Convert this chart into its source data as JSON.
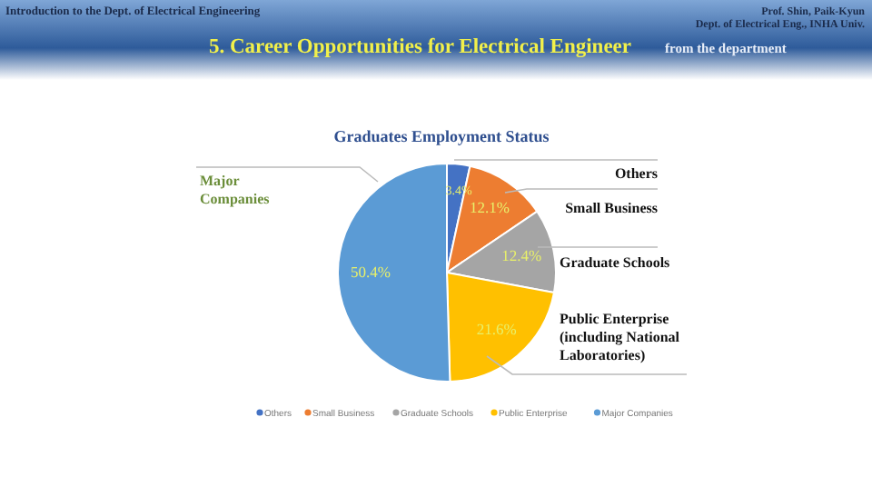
{
  "chart_data": {
    "type": "pie",
    "title": "Graduates Employment Status",
    "subtitle": "5. Career Opportunities  for Electrical Engineer",
    "categories": [
      "Others",
      "Small Business",
      "Graduate Schools",
      "Public Enterprise",
      "Major Companies"
    ],
    "values": [
      3.4,
      12.1,
      12.4,
      21.6,
      50.4
    ],
    "colors": [
      "#4472c4",
      "#ed7d31",
      "#a5a5a5",
      "#ffc000",
      "#5b9bd5"
    ],
    "value_labels": [
      "3.4%",
      "12.1%",
      "12.4%",
      "21.6%",
      "50.4%"
    ],
    "legend": "bottom",
    "annotations": [
      "Introduction to the Dept. of Electrical Engineering",
      "Prof. Shin, Paik-Kyun",
      "Dept. of Electrical Eng., INHA Univ.",
      "from the department",
      "Others",
      "Small Business",
      "Graduate Schools",
      "Public Enterprise\n(including National\nLaboratories)",
      "Major\nCompanies"
    ]
  }
}
